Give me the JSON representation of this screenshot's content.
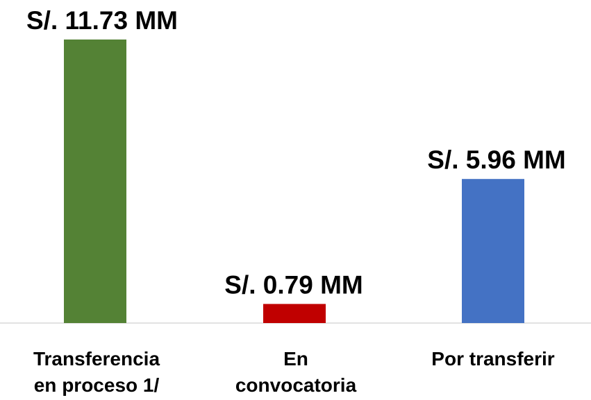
{
  "chart_data": {
    "type": "bar",
    "categories": [
      [
        "Transferencia",
        "en proceso 1/"
      ],
      [
        "En",
        "convocatoria"
      ],
      [
        "Por transferir"
      ]
    ],
    "values": [
      11.73,
      0.79,
      5.96
    ],
    "value_labels": [
      "S/. 11.73 MM",
      "S/. 0.79 MM",
      "S/. 5.96 MM"
    ],
    "colors": [
      "#548235",
      "#c00000",
      "#4472c4"
    ]
  }
}
